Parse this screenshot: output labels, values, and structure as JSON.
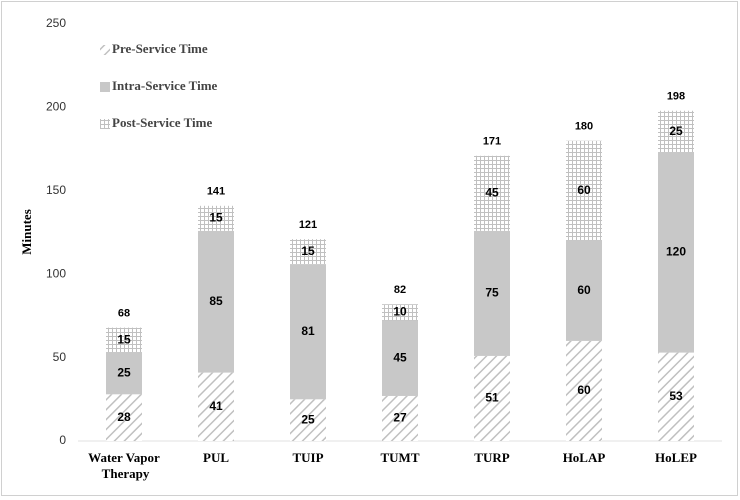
{
  "chart_data": {
    "type": "stacked_bar",
    "y_label": "Minutes",
    "categories": [
      "Water Vapor Therapy",
      "PUL",
      "TUIP",
      "TUMT",
      "TURP",
      "HoLAP",
      "HoLEP"
    ],
    "series": [
      {
        "name": "Pre-Service Time",
        "color": "#c0c0c0",
        "pattern": "hatch",
        "values": [
          28,
          41,
          25,
          27,
          51,
          60,
          53
        ]
      },
      {
        "name": "Intra-Service Time",
        "color": "#c8c8c8",
        "pattern": "solid",
        "values": [
          25,
          85,
          81,
          45,
          75,
          60,
          120
        ]
      },
      {
        "name": "Post-Service Time",
        "color": "#c0c0c0",
        "pattern": "grid",
        "values": [
          15,
          15,
          15,
          10,
          45,
          60,
          25
        ]
      }
    ],
    "totals": [
      68,
      141,
      121,
      82,
      171,
      180,
      198
    ],
    "ylim": [
      0,
      250
    ],
    "yticks": [
      0,
      50,
      100,
      150,
      200,
      250
    ],
    "legend": "top-left"
  }
}
